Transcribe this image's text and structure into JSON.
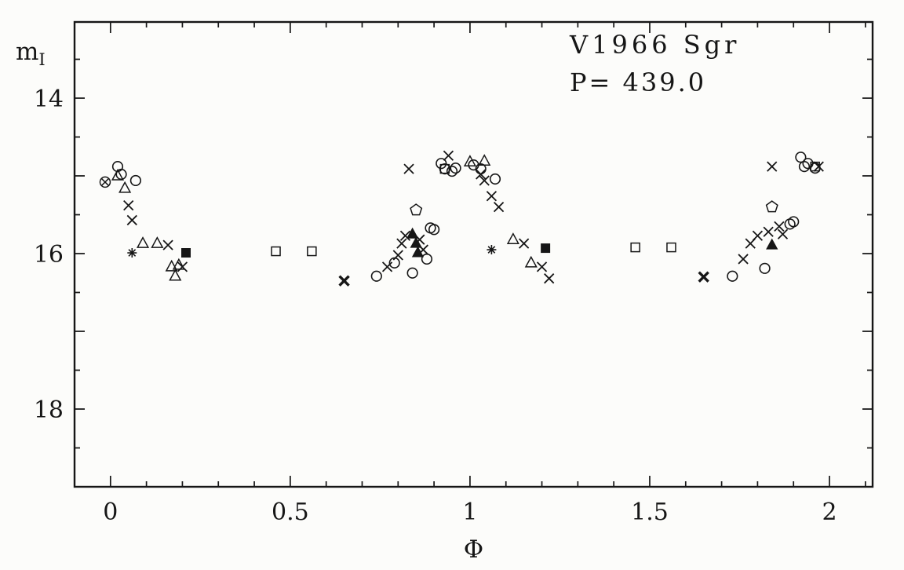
{
  "chart_data": {
    "type": "scatter",
    "title": "V1966 Sgr",
    "subtitle": "P= 439.0",
    "xlabel": "Φ",
    "ylabel": "m",
    "ylabel_sub": "I",
    "x_axis_meaning": "phase",
    "y_axis_meaning": "I-band magnitude (inverted axis)",
    "xlim": [
      -0.1,
      2.12
    ],
    "ylim": [
      13.02,
      19.0
    ],
    "xticks": [
      0,
      0.5,
      1,
      1.5,
      2
    ],
    "xtick_labels": [
      "0",
      "0.5",
      "1",
      "1.5",
      "2"
    ],
    "yticks": [
      14,
      16,
      18
    ],
    "ytick_labels": [
      "14",
      "16",
      "18"
    ],
    "x_minor_step": 0.1,
    "y_minor_step": 0.5,
    "grid": false,
    "legend": "none",
    "marker_color": "#161616",
    "series": [
      {
        "name": "cross",
        "marker": "cross",
        "points": [
          [
            0.05,
            15.38
          ],
          [
            0.06,
            15.57
          ],
          [
            0.16,
            15.89
          ],
          [
            0.2,
            16.17
          ],
          [
            0.77,
            16.17
          ],
          [
            0.8,
            16.02
          ],
          [
            0.81,
            15.87
          ],
          [
            0.82,
            15.77
          ],
          [
            0.83,
            14.91
          ],
          [
            0.86,
            15.82
          ],
          [
            0.87,
            15.95
          ],
          [
            0.94,
            14.74
          ],
          [
            1.03,
            14.98
          ],
          [
            1.04,
            15.06
          ],
          [
            1.06,
            15.26
          ],
          [
            1.08,
            15.4
          ],
          [
            1.15,
            15.87
          ],
          [
            1.2,
            16.17
          ],
          [
            1.22,
            16.32
          ],
          [
            1.76,
            16.07
          ],
          [
            1.78,
            15.87
          ],
          [
            1.8,
            15.77
          ],
          [
            1.83,
            15.72
          ],
          [
            1.84,
            14.88
          ],
          [
            1.86,
            15.65
          ],
          [
            1.87,
            15.75
          ],
          [
            1.97,
            14.88
          ]
        ]
      },
      {
        "name": "cross-bold",
        "marker": "cross-bold",
        "points": [
          [
            0.65,
            16.35
          ],
          [
            1.65,
            16.3
          ]
        ]
      },
      {
        "name": "open-circle",
        "marker": "open-circle",
        "points": [
          [
            0.02,
            14.88
          ],
          [
            0.03,
            14.98
          ],
          [
            0.07,
            15.06
          ],
          [
            0.74,
            16.29
          ],
          [
            0.79,
            16.12
          ],
          [
            0.84,
            16.25
          ],
          [
            0.88,
            16.07
          ],
          [
            0.89,
            15.67
          ],
          [
            0.9,
            15.69
          ],
          [
            0.92,
            14.84
          ],
          [
            0.93,
            14.91
          ],
          [
            0.95,
            14.94
          ],
          [
            0.96,
            14.9
          ],
          [
            1.01,
            14.86
          ],
          [
            1.03,
            14.91
          ],
          [
            1.07,
            15.04
          ],
          [
            1.73,
            16.29
          ],
          [
            1.82,
            16.19
          ],
          [
            1.89,
            15.62
          ],
          [
            1.9,
            15.59
          ],
          [
            1.92,
            14.76
          ],
          [
            1.93,
            14.88
          ],
          [
            1.94,
            14.84
          ],
          [
            1.96,
            14.9
          ]
        ]
      },
      {
        "name": "open-triangle",
        "marker": "open-triangle",
        "points": [
          [
            0.02,
            15.0
          ],
          [
            0.04,
            15.16
          ],
          [
            0.09,
            15.87
          ],
          [
            0.13,
            15.87
          ],
          [
            0.17,
            16.17
          ],
          [
            0.19,
            16.15
          ],
          [
            0.18,
            16.29
          ],
          [
            1.0,
            14.82
          ],
          [
            1.04,
            14.81
          ],
          [
            1.12,
            15.82
          ],
          [
            1.17,
            16.12
          ]
        ]
      },
      {
        "name": "filled-triangle",
        "marker": "filled-triangle",
        "points": [
          [
            0.84,
            15.75
          ],
          [
            0.85,
            15.87
          ],
          [
            0.855,
            15.99
          ],
          [
            1.84,
            15.89
          ]
        ]
      },
      {
        "name": "open-square",
        "marker": "open-square",
        "points": [
          [
            0.46,
            15.97
          ],
          [
            0.56,
            15.97
          ],
          [
            1.46,
            15.92
          ],
          [
            1.56,
            15.92
          ],
          [
            0.93,
            14.91
          ],
          [
            1.96,
            14.88
          ]
        ]
      },
      {
        "name": "filled-square",
        "marker": "filled-square",
        "points": [
          [
            0.21,
            15.99
          ],
          [
            1.21,
            15.93
          ]
        ]
      },
      {
        "name": "open-pentagon",
        "marker": "open-pentagon",
        "points": [
          [
            0.85,
            15.44
          ],
          [
            1.84,
            15.4
          ]
        ]
      },
      {
        "name": "circled-cross",
        "marker": "circled-cross",
        "points": [
          [
            -0.015,
            15.08
          ]
        ]
      },
      {
        "name": "asterisk",
        "marker": "asterisk",
        "points": [
          [
            0.06,
            15.99
          ],
          [
            1.06,
            15.95
          ]
        ]
      }
    ]
  }
}
